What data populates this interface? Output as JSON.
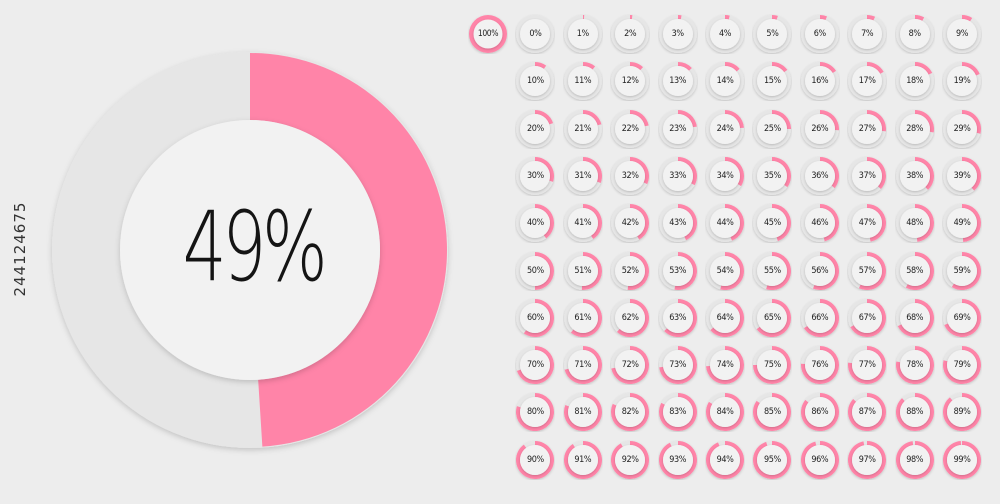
{
  "featured": {
    "value": 49,
    "label": "49%"
  },
  "side_id": "244124675",
  "colors": {
    "accent": "#ff84a8",
    "track": "#e6e6e6",
    "inner": "#f2f2f2",
    "background": "#ededed",
    "text": "#141414"
  },
  "grid": {
    "first_cell": {
      "value": 100,
      "label": "100%"
    },
    "cells": [
      {
        "value": 0,
        "label": "0%"
      },
      {
        "value": 1,
        "label": "1%"
      },
      {
        "value": 2,
        "label": "2%"
      },
      {
        "value": 3,
        "label": "3%"
      },
      {
        "value": 4,
        "label": "4%"
      },
      {
        "value": 5,
        "label": "5%"
      },
      {
        "value": 6,
        "label": "6%"
      },
      {
        "value": 7,
        "label": "7%"
      },
      {
        "value": 8,
        "label": "8%"
      },
      {
        "value": 9,
        "label": "9%"
      },
      {
        "value": 10,
        "label": "10%"
      },
      {
        "value": 11,
        "label": "11%"
      },
      {
        "value": 12,
        "label": "12%"
      },
      {
        "value": 13,
        "label": "13%"
      },
      {
        "value": 14,
        "label": "14%"
      },
      {
        "value": 15,
        "label": "15%"
      },
      {
        "value": 16,
        "label": "16%"
      },
      {
        "value": 17,
        "label": "17%"
      },
      {
        "value": 18,
        "label": "18%"
      },
      {
        "value": 19,
        "label": "19%"
      },
      {
        "value": 20,
        "label": "20%"
      },
      {
        "value": 21,
        "label": "21%"
      },
      {
        "value": 22,
        "label": "22%"
      },
      {
        "value": 23,
        "label": "23%"
      },
      {
        "value": 24,
        "label": "24%"
      },
      {
        "value": 25,
        "label": "25%"
      },
      {
        "value": 26,
        "label": "26%"
      },
      {
        "value": 27,
        "label": "27%"
      },
      {
        "value": 28,
        "label": "28%"
      },
      {
        "value": 29,
        "label": "29%"
      },
      {
        "value": 30,
        "label": "30%"
      },
      {
        "value": 31,
        "label": "31%"
      },
      {
        "value": 32,
        "label": "32%"
      },
      {
        "value": 33,
        "label": "33%"
      },
      {
        "value": 34,
        "label": "34%"
      },
      {
        "value": 35,
        "label": "35%"
      },
      {
        "value": 36,
        "label": "36%"
      },
      {
        "value": 37,
        "label": "37%"
      },
      {
        "value": 38,
        "label": "38%"
      },
      {
        "value": 39,
        "label": "39%"
      },
      {
        "value": 40,
        "label": "40%"
      },
      {
        "value": 41,
        "label": "41%"
      },
      {
        "value": 42,
        "label": "42%"
      },
      {
        "value": 43,
        "label": "43%"
      },
      {
        "value": 44,
        "label": "44%"
      },
      {
        "value": 45,
        "label": "45%"
      },
      {
        "value": 46,
        "label": "46%"
      },
      {
        "value": 47,
        "label": "47%"
      },
      {
        "value": 48,
        "label": "48%"
      },
      {
        "value": 49,
        "label": "49%"
      },
      {
        "value": 50,
        "label": "50%"
      },
      {
        "value": 51,
        "label": "51%"
      },
      {
        "value": 52,
        "label": "52%"
      },
      {
        "value": 53,
        "label": "53%"
      },
      {
        "value": 54,
        "label": "54%"
      },
      {
        "value": 55,
        "label": "55%"
      },
      {
        "value": 56,
        "label": "56%"
      },
      {
        "value": 57,
        "label": "57%"
      },
      {
        "value": 58,
        "label": "58%"
      },
      {
        "value": 59,
        "label": "59%"
      },
      {
        "value": 60,
        "label": "60%"
      },
      {
        "value": 61,
        "label": "61%"
      },
      {
        "value": 62,
        "label": "62%"
      },
      {
        "value": 63,
        "label": "63%"
      },
      {
        "value": 64,
        "label": "64%"
      },
      {
        "value": 65,
        "label": "65%"
      },
      {
        "value": 66,
        "label": "66%"
      },
      {
        "value": 67,
        "label": "67%"
      },
      {
        "value": 68,
        "label": "68%"
      },
      {
        "value": 69,
        "label": "69%"
      },
      {
        "value": 70,
        "label": "70%"
      },
      {
        "value": 71,
        "label": "71%"
      },
      {
        "value": 72,
        "label": "72%"
      },
      {
        "value": 73,
        "label": "73%"
      },
      {
        "value": 74,
        "label": "74%"
      },
      {
        "value": 75,
        "label": "75%"
      },
      {
        "value": 76,
        "label": "76%"
      },
      {
        "value": 77,
        "label": "77%"
      },
      {
        "value": 78,
        "label": "78%"
      },
      {
        "value": 79,
        "label": "79%"
      },
      {
        "value": 80,
        "label": "80%"
      },
      {
        "value": 81,
        "label": "81%"
      },
      {
        "value": 82,
        "label": "82%"
      },
      {
        "value": 83,
        "label": "83%"
      },
      {
        "value": 84,
        "label": "84%"
      },
      {
        "value": 85,
        "label": "85%"
      },
      {
        "value": 86,
        "label": "86%"
      },
      {
        "value": 87,
        "label": "87%"
      },
      {
        "value": 88,
        "label": "88%"
      },
      {
        "value": 89,
        "label": "89%"
      },
      {
        "value": 90,
        "label": "90%"
      },
      {
        "value": 91,
        "label": "91%"
      },
      {
        "value": 92,
        "label": "92%"
      },
      {
        "value": 93,
        "label": "93%"
      },
      {
        "value": 94,
        "label": "94%"
      },
      {
        "value": 95,
        "label": "95%"
      },
      {
        "value": 96,
        "label": "96%"
      },
      {
        "value": 97,
        "label": "97%"
      },
      {
        "value": 98,
        "label": "98%"
      },
      {
        "value": 99,
        "label": "99%"
      }
    ]
  }
}
